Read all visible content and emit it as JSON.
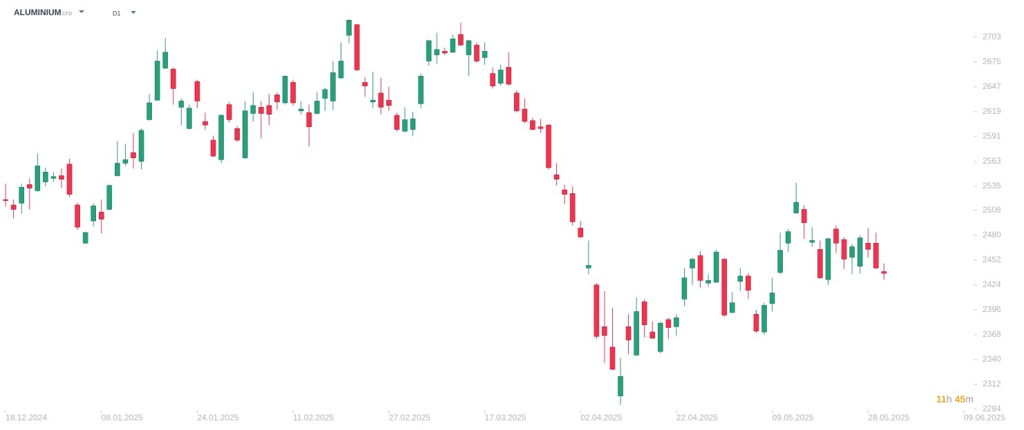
{
  "chart_data": {
    "type": "candlestick",
    "symbol": "ALUMINIUM",
    "instrument_type": "CFD",
    "timeframe": "D1",
    "timer": {
      "hours": "11",
      "hours_unit": "h",
      "minutes": "45",
      "minutes_unit": "m"
    },
    "up_color": "#26a17b",
    "down_color": "#f2324e",
    "open": [
      2520,
      2514,
      2516,
      2537,
      2530,
      2540,
      2544,
      2547,
      2560,
      2514,
      2471,
      2496,
      2506,
      2509,
      2547,
      2561,
      2573,
      2563,
      2610,
      2632,
      2668,
      2667,
      2624,
      2600,
      2653,
      2608,
      2587,
      2565,
      2627,
      2600,
      2567,
      2617,
      2624,
      2626,
      2638,
      2629,
      2652,
      2620,
      2618,
      2617,
      2634,
      2631,
      2657,
      2705,
      2717,
      2652,
      2630,
      2640,
      2632,
      2615,
      2597,
      2599,
      2628,
      2676,
      2683,
      2687,
      2686,
      2706,
      2683,
      2694,
      2680,
      2662,
      2651,
      2669,
      2640,
      2622,
      2609,
      2602,
      2604,
      2548,
      2531,
      2527,
      2488,
      2443,
      2424,
      2377,
      2354,
      2299,
      2377,
      2345,
      2405,
      2371,
      2349,
      2385,
      2377,
      2408,
      2443,
      2457,
      2426,
      2427,
      2453,
      2393,
      2428,
      2434,
      2391,
      2371,
      2403,
      2438,
      2471,
      2505,
      2509,
      2472,
      2464,
      2430,
      2487,
      2475,
      2455,
      2445,
      2471,
      2471,
      2439
    ],
    "high": [
      2538,
      2520,
      2538,
      2544,
      2572,
      2556,
      2551,
      2555,
      2566,
      2517,
      2484,
      2516,
      2520,
      2537,
      2586,
      2583,
      2595,
      2600,
      2639,
      2688,
      2702,
      2669,
      2634,
      2627,
      2655,
      2618,
      2592,
      2616,
      2630,
      2603,
      2631,
      2641,
      2631,
      2639,
      2641,
      2660,
      2655,
      2631,
      2627,
      2641,
      2646,
      2676,
      2697,
      2723,
      2718,
      2658,
      2664,
      2657,
      2647,
      2618,
      2624,
      2619,
      2662,
      2700,
      2708,
      2691,
      2706,
      2719,
      2700,
      2697,
      2697,
      2669,
      2672,
      2686,
      2643,
      2634,
      2612,
      2611,
      2605,
      2561,
      2537,
      2535,
      2496,
      2474,
      2426,
      2417,
      2398,
      2342,
      2391,
      2410,
      2408,
      2383,
      2383,
      2387,
      2391,
      2443,
      2455,
      2462,
      2436,
      2464,
      2454,
      2416,
      2443,
      2437,
      2396,
      2404,
      2432,
      2483,
      2487,
      2539,
      2514,
      2489,
      2474,
      2477,
      2491,
      2478,
      2470,
      2480,
      2488,
      2483,
      2448
    ],
    "low": [
      2512,
      2499,
      2504,
      2509,
      2529,
      2535,
      2540,
      2533,
      2523,
      2486,
      2470,
      2490,
      2482,
      2508,
      2546,
      2558,
      2555,
      2554,
      2609,
      2631,
      2667,
      2627,
      2604,
      2599,
      2623,
      2599,
      2568,
      2561,
      2607,
      2585,
      2566,
      2608,
      2589,
      2604,
      2621,
      2627,
      2626,
      2616,
      2580,
      2616,
      2620,
      2621,
      2656,
      2696,
      2665,
      2636,
      2623,
      2616,
      2620,
      2597,
      2596,
      2592,
      2623,
      2671,
      2673,
      2683,
      2685,
      2693,
      2659,
      2674,
      2672,
      2645,
      2648,
      2648,
      2618,
      2606,
      2598,
      2595,
      2554,
      2536,
      2515,
      2491,
      2477,
      2436,
      2363,
      2336,
      2328,
      2289,
      2346,
      2344,
      2365,
      2363,
      2347,
      2363,
      2367,
      2400,
      2424,
      2421,
      2422,
      2426,
      2388,
      2392,
      2417,
      2408,
      2370,
      2368,
      2394,
      2436,
      2461,
      2504,
      2476,
      2467,
      2431,
      2424,
      2460,
      2442,
      2436,
      2437,
      2455,
      2442,
      2430
    ],
    "close": [
      2519,
      2509,
      2534,
      2533,
      2558,
      2551,
      2546,
      2543,
      2526,
      2489,
      2483,
      2513,
      2498,
      2536,
      2561,
      2565,
      2567,
      2598,
      2629,
      2676,
      2686,
      2645,
      2631,
      2623,
      2631,
      2604,
      2569,
      2615,
      2610,
      2587,
      2620,
      2626,
      2617,
      2616,
      2630,
      2659,
      2629,
      2622,
      2602,
      2631,
      2644,
      2663,
      2676,
      2722,
      2666,
      2648,
      2632,
      2624,
      2626,
      2599,
      2610,
      2611,
      2659,
      2699,
      2689,
      2685,
      2701,
      2694,
      2699,
      2676,
      2687,
      2648,
      2666,
      2650,
      2620,
      2608,
      2599,
      2600,
      2556,
      2543,
      2526,
      2495,
      2478,
      2446,
      2366,
      2367,
      2329,
      2321,
      2362,
      2394,
      2379,
      2364,
      2381,
      2376,
      2387,
      2432,
      2453,
      2429,
      2429,
      2461,
      2390,
      2404,
      2434,
      2418,
      2372,
      2401,
      2415,
      2463,
      2484,
      2517,
      2494,
      2474,
      2432,
      2476,
      2471,
      2453,
      2467,
      2477,
      2464,
      2443,
      2437
    ],
    "ylim": [
      2270,
      2730
    ],
    "yticks": [
      2284,
      2312,
      2340,
      2368,
      2396,
      2424,
      2452,
      2480,
      2508,
      2535,
      2563,
      2591,
      2619,
      2647,
      2675,
      2703
    ],
    "xlim": [
      -0.7,
      121.3
    ],
    "xticks": [
      {
        "value": 0,
        "label": "18.12.2024"
      },
      {
        "value": 12,
        "label": "08.01.2025"
      },
      {
        "value": 24,
        "label": "24.01.2025"
      },
      {
        "value": 36,
        "label": "11.02.2025"
      },
      {
        "value": 48,
        "label": "27.02.2025"
      },
      {
        "value": 60,
        "label": "17.03.2025"
      },
      {
        "value": 72,
        "label": "02.04.2025"
      },
      {
        "value": 84,
        "label": "22.04.2025"
      },
      {
        "value": 96,
        "label": "09.05.2025"
      },
      {
        "value": 108,
        "label": "28.05.2025"
      },
      {
        "value": 120,
        "label": "09.06.2025"
      }
    ]
  }
}
